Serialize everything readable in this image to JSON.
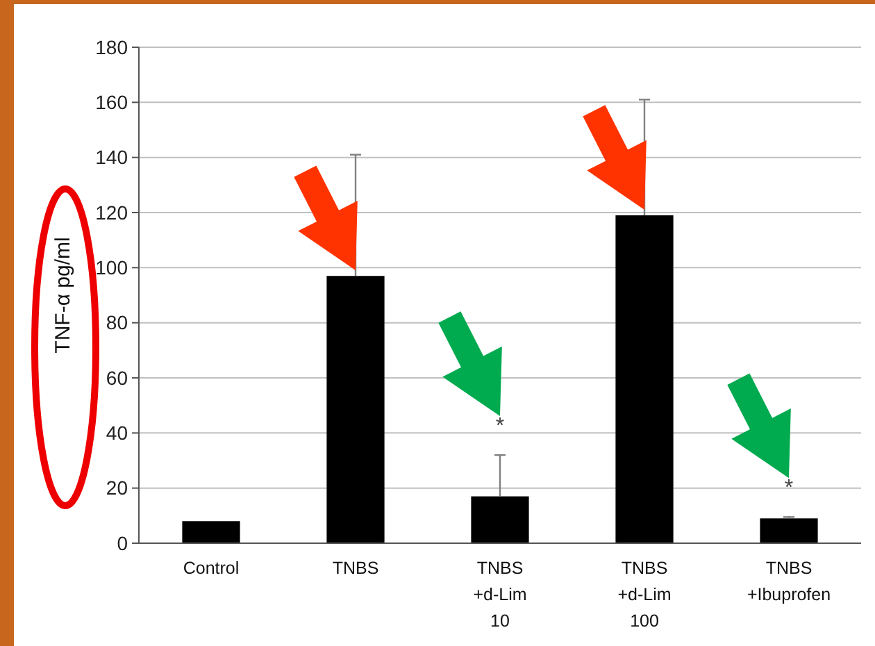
{
  "chart_data": {
    "type": "bar",
    "ylabel": "TNF-α pg/ml",
    "categories": [
      "Control",
      "TNBS",
      "TNBS +d-Lim 10",
      "TNBS +d-Lim 100",
      "TNBS +Ibuprofen"
    ],
    "values": [
      8,
      97,
      17,
      119,
      9
    ],
    "color": "#000000",
    "errors": [
      null,
      [
        97,
        141
      ],
      [
        17,
        32
      ],
      [
        119,
        161
      ],
      [
        9,
        9.5
      ]
    ],
    "ylim": [
      0,
      180
    ],
    "yticks": [
      0,
      20,
      40,
      60,
      80,
      100,
      120,
      140,
      160,
      180
    ],
    "grid": "y",
    "annotations": [
      "*",
      "*"
    ]
  }
}
